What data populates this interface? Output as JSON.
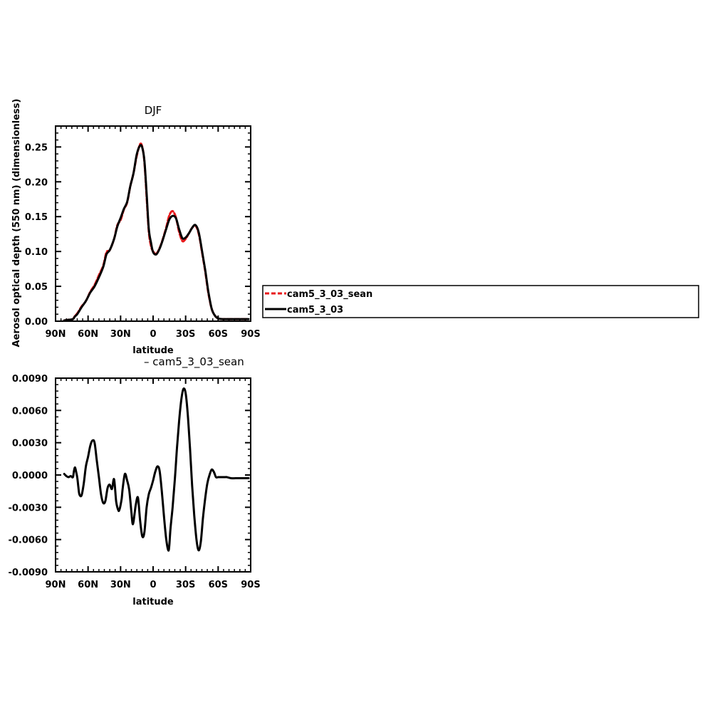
{
  "chart_data": [
    {
      "type": "line",
      "title": "DJF",
      "xlabel": "latitude",
      "ylabel": "Aerosol optical depth (550 nm) (dimensionless)",
      "xlim": [
        -90,
        90
      ],
      "ylim": [
        0,
        0.28
      ],
      "x_ticks": [
        -90,
        -60,
        -30,
        0,
        30,
        60,
        90
      ],
      "x_tick_labels": [
        "90N",
        "60N",
        "30N",
        "0",
        "30S",
        "60S",
        "90S"
      ],
      "y_ticks": [
        0,
        0.05,
        0.1,
        0.15,
        0.2,
        0.25
      ],
      "y_tick_labels": [
        "0.00",
        "0.05",
        "0.10",
        "0.15",
        "0.20",
        "0.25"
      ],
      "grid": false,
      "legend_position": "right",
      "series": [
        {
          "name": "cam5_3_03_sean",
          "color": "#e8191b",
          "dash": "dashed",
          "x": [
            -82,
            -78,
            -74,
            -72,
            -70,
            -66,
            -62,
            -58,
            -54,
            -50,
            -46,
            -43,
            -40,
            -36,
            -33,
            -30,
            -27,
            -24,
            -21,
            -18,
            -15,
            -12,
            -10,
            -8,
            -6,
            -4,
            -2,
            0,
            3,
            6,
            9,
            12,
            15,
            18,
            21,
            24,
            27,
            30,
            33,
            36,
            39,
            42,
            45,
            48,
            51,
            54,
            57,
            60,
            64,
            68,
            74,
            80,
            88
          ],
          "y": [
            0.001,
            0.002,
            0.003,
            0.008,
            0.011,
            0.021,
            0.029,
            0.042,
            0.052,
            0.066,
            0.08,
            0.099,
            0.102,
            0.118,
            0.138,
            0.145,
            0.16,
            0.17,
            0.194,
            0.213,
            0.238,
            0.254,
            0.25,
            0.228,
            0.178,
            0.129,
            0.108,
            0.1,
            0.097,
            0.105,
            0.118,
            0.134,
            0.152,
            0.158,
            0.149,
            0.128,
            0.115,
            0.118,
            0.126,
            0.134,
            0.137,
            0.126,
            0.1,
            0.072,
            0.04,
            0.018,
            0.008,
            0.004,
            0.003,
            0.003,
            0.003,
            0.003,
            0.003
          ]
        },
        {
          "name": "cam5_3_03",
          "color": "#000000",
          "dash": "solid",
          "x": [
            -82,
            -78,
            -74,
            -72,
            -70,
            -66,
            -62,
            -58,
            -54,
            -50,
            -46,
            -43,
            -40,
            -36,
            -33,
            -30,
            -27,
            -24,
            -21,
            -18,
            -15,
            -12,
            -10,
            -8,
            -6,
            -4,
            -2,
            0,
            3,
            6,
            9,
            12,
            15,
            18,
            21,
            24,
            27,
            30,
            33,
            36,
            39,
            42,
            45,
            48,
            51,
            54,
            57,
            60,
            64,
            68,
            74,
            80,
            88
          ],
          "y": [
            0.001,
            0.002,
            0.003,
            0.007,
            0.01,
            0.02,
            0.029,
            0.041,
            0.05,
            0.063,
            0.078,
            0.096,
            0.102,
            0.118,
            0.136,
            0.148,
            0.161,
            0.171,
            0.194,
            0.213,
            0.24,
            0.252,
            0.249,
            0.23,
            0.183,
            0.133,
            0.113,
            0.099,
            0.096,
            0.104,
            0.117,
            0.132,
            0.146,
            0.151,
            0.148,
            0.132,
            0.119,
            0.12,
            0.126,
            0.134,
            0.138,
            0.128,
            0.102,
            0.074,
            0.042,
            0.018,
            0.008,
            0.004,
            0.003,
            0.003,
            0.003,
            0.003,
            0.003
          ]
        }
      ]
    },
    {
      "type": "line",
      "title": " – cam5_3_03_sean",
      "xlabel": "latitude",
      "ylabel": "",
      "xlim": [
        -90,
        90
      ],
      "ylim": [
        -0.009,
        0.009
      ],
      "x_ticks": [
        -90,
        -60,
        -30,
        0,
        30,
        60,
        90
      ],
      "x_tick_labels": [
        "90N",
        "60N",
        "30N",
        "0",
        "30S",
        "60S",
        "90S"
      ],
      "y_ticks": [
        -0.009,
        -0.006,
        -0.003,
        0,
        0.003,
        0.006,
        0.009
      ],
      "y_tick_labels": [
        "-0.0090",
        "-0.0060",
        "-0.0030",
        "0.0000",
        "0.0030",
        "0.0060",
        "0.0090"
      ],
      "grid": false,
      "series": [
        {
          "name": "",
          "color": "#000000",
          "dash": "solid",
          "x": [
            -82,
            -80,
            -78,
            -76,
            -74,
            -73,
            -72,
            -71,
            -70,
            -69,
            -68,
            -66,
            -64,
            -62,
            -60,
            -58,
            -56,
            -54,
            -52,
            -50,
            -48,
            -46,
            -44,
            -42,
            -40,
            -38,
            -36,
            -34,
            -32,
            -31,
            -30,
            -29,
            -28,
            -26,
            -24,
            -22,
            -20,
            -19,
            -18,
            -16,
            -14,
            -12,
            -10,
            -8,
            -6,
            -4,
            -2,
            0,
            2,
            4,
            6,
            8,
            10,
            12,
            14,
            15,
            16,
            18,
            20,
            22,
            24,
            26,
            28,
            30,
            32,
            34,
            36,
            38,
            40,
            42,
            44,
            46,
            48,
            50,
            52,
            54,
            56,
            58,
            60,
            62,
            64,
            66,
            68,
            72,
            76,
            80,
            88
          ],
          "y": [
            0.0001,
            -0.0001,
            -0.0002,
            -0.0001,
            -0.0002,
            0.0004,
            0.0007,
            0.0003,
            -0.0002,
            -0.0011,
            -0.0018,
            -0.0019,
            -0.0008,
            0.0008,
            0.0017,
            0.0027,
            0.0032,
            0.003,
            0.0014,
            -0.0002,
            -0.0018,
            -0.0026,
            -0.0024,
            -0.0012,
            -0.0009,
            -0.0013,
            -0.0004,
            -0.0025,
            -0.0033,
            -0.0032,
            -0.0028,
            -0.0022,
            -0.0012,
            0.0001,
            -0.0005,
            -0.0014,
            -0.0035,
            -0.0045,
            -0.0043,
            -0.0028,
            -0.0021,
            -0.0042,
            -0.0057,
            -0.0053,
            -0.003,
            -0.0018,
            -0.0012,
            -0.0005,
            0.0003,
            0.0008,
            0.0004,
            -0.0015,
            -0.0038,
            -0.0059,
            -0.007,
            -0.0065,
            -0.005,
            -0.003,
            -0.0005,
            0.0025,
            0.005,
            0.007,
            0.008,
            0.0076,
            0.0056,
            0.0025,
            -0.001,
            -0.0038,
            -0.006,
            -0.007,
            -0.0062,
            -0.004,
            -0.0022,
            -0.0008,
            0.0,
            0.0005,
            0.0003,
            -0.0002,
            -0.0002,
            -0.0002,
            -0.0002,
            -0.0002,
            -0.0002,
            -0.0003,
            -0.0003,
            -0.0003,
            -0.0003
          ]
        }
      ]
    }
  ]
}
